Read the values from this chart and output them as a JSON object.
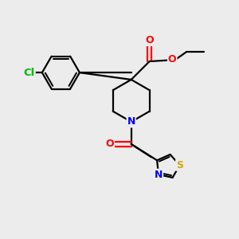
{
  "bg_color": "#ececec",
  "bond_color": "#000000",
  "fig_width": 3.0,
  "fig_height": 3.0,
  "dpi": 100,
  "atom_colors": {
    "O": "#ff0000",
    "N": "#0000ff",
    "Cl": "#00bb00",
    "S": "#ccaa00",
    "C": "#000000"
  },
  "font_size_atom": 9,
  "bond_lw": 1.6
}
